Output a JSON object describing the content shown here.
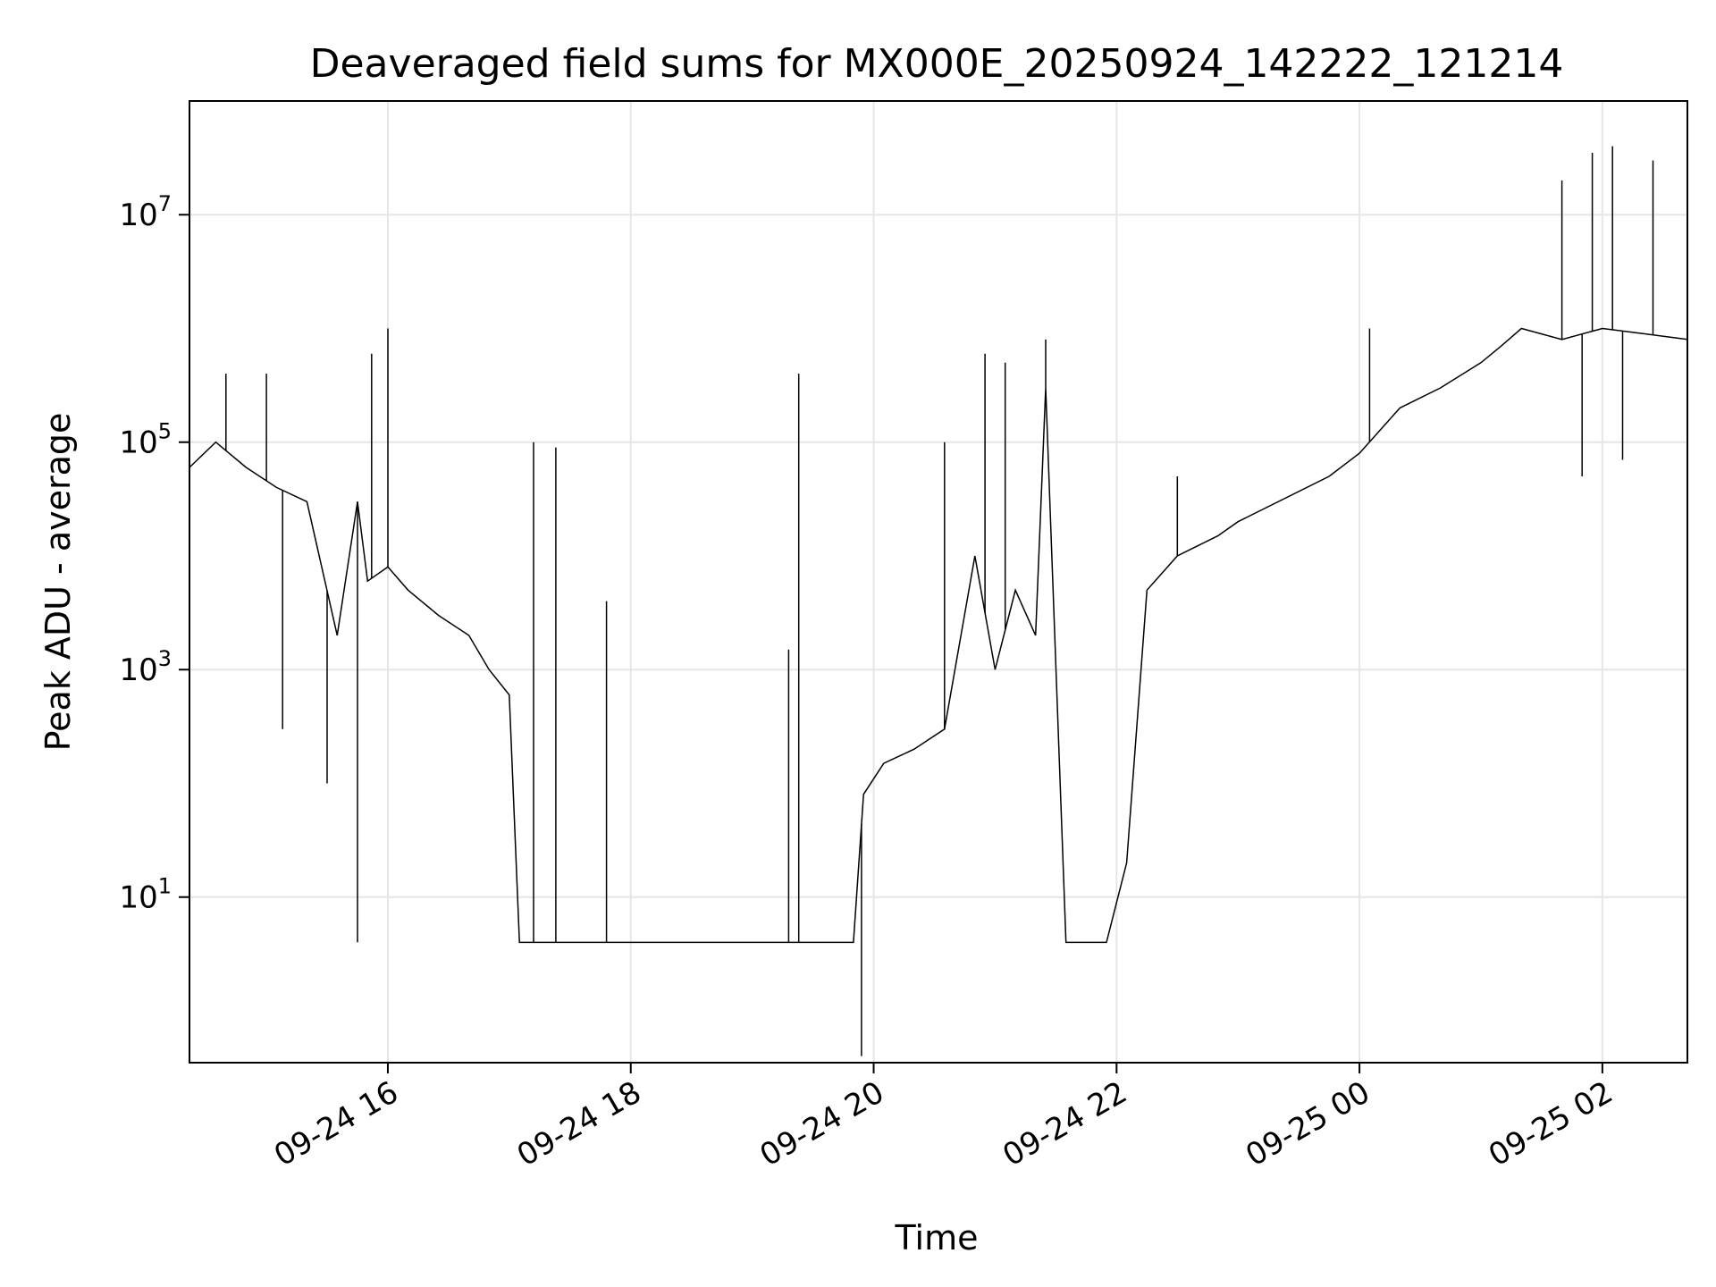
{
  "chart_data": {
    "type": "line",
    "title": "Deaveraged field sums for MX000E_20250924_142222_121214",
    "xlabel": "Time",
    "ylabel": "Peak ADU - average",
    "yscale": "log",
    "ylim": [
      0.35,
      100000000
    ],
    "xlim": [
      "2025-09-24T14:22",
      "2025-09-25T02:42"
    ],
    "grid": true,
    "line_color": "#000000",
    "x_ticks": [
      {
        "value": "2025-09-24T16:00",
        "label": "09-24 16"
      },
      {
        "value": "2025-09-24T18:00",
        "label": "09-24 18"
      },
      {
        "value": "2025-09-24T20:00",
        "label": "09-24 20"
      },
      {
        "value": "2025-09-24T22:00",
        "label": "09-24 22"
      },
      {
        "value": "2025-09-25T00:00",
        "label": "09-25 00"
      },
      {
        "value": "2025-09-25T02:00",
        "label": "09-25 02"
      }
    ],
    "y_ticks": [
      {
        "value": 10,
        "base": "10",
        "exp": "1"
      },
      {
        "value": 1000,
        "base": "10",
        "exp": "3"
      },
      {
        "value": 100000,
        "base": "10",
        "exp": "5"
      },
      {
        "value": 10000000,
        "base": "10",
        "exp": "7"
      }
    ],
    "series": [
      {
        "x": [
          "2025-09-24T14:22",
          "2025-09-24T14:35",
          "2025-09-24T14:50",
          "2025-09-24T15:05",
          "2025-09-24T15:20",
          "2025-09-24T15:35",
          "2025-09-24T15:45",
          "2025-09-24T15:50",
          "2025-09-24T16:00",
          "2025-09-24T16:10",
          "2025-09-24T16:25",
          "2025-09-24T16:40",
          "2025-09-24T16:50",
          "2025-09-24T17:00",
          "2025-09-24T17:05",
          "2025-09-24T17:20",
          "2025-09-24T17:40",
          "2025-09-24T18:30",
          "2025-09-24T19:10",
          "2025-09-24T19:30",
          "2025-09-24T19:50",
          "2025-09-24T19:55",
          "2025-09-24T20:05",
          "2025-09-24T20:20",
          "2025-09-24T20:35",
          "2025-09-24T20:50",
          "2025-09-24T21:00",
          "2025-09-24T21:10",
          "2025-09-24T21:20",
          "2025-09-24T21:25",
          "2025-09-24T21:35",
          "2025-09-24T21:45",
          "2025-09-24T21:55",
          "2025-09-24T22:05",
          "2025-09-24T22:15",
          "2025-09-24T22:30",
          "2025-09-24T22:50",
          "2025-09-24T23:00",
          "2025-09-24T23:45",
          "2025-09-25T00:00",
          "2025-09-25T00:20",
          "2025-09-25T00:40",
          "2025-09-25T01:00",
          "2025-09-25T01:10",
          "2025-09-25T01:20",
          "2025-09-25T01:40",
          "2025-09-25T02:00",
          "2025-09-25T02:20",
          "2025-09-25T02:42"
        ],
        "y": [
          60000,
          100000,
          60000,
          40000,
          30000,
          2000,
          30000,
          6000,
          8000,
          5000,
          3000,
          2000,
          1000,
          600,
          4,
          4,
          4,
          4,
          4,
          4,
          4,
          80,
          150,
          200,
          300,
          10000,
          1000,
          5000,
          2000,
          300000,
          4,
          4,
          4,
          20,
          5000,
          10000,
          15000,
          20000,
          50000,
          80000,
          200000,
          300000,
          500000,
          700000,
          1000000,
          800000,
          1000000,
          900000,
          800000
        ],
        "spikes": [
          {
            "x": "2025-09-24T14:40",
            "y": 400000
          },
          {
            "x": "2025-09-24T15:00",
            "y": 400000
          },
          {
            "x": "2025-09-24T15:08",
            "y": 300
          },
          {
            "x": "2025-09-24T15:30",
            "y": 100
          },
          {
            "x": "2025-09-24T15:45",
            "y": 4
          },
          {
            "x": "2025-09-24T15:52",
            "y": 600000
          },
          {
            "x": "2025-09-24T16:00",
            "y": 1000000
          },
          {
            "x": "2025-09-24T17:12",
            "y": 100000
          },
          {
            "x": "2025-09-24T17:23",
            "y": 90000
          },
          {
            "x": "2025-09-24T17:48",
            "y": 4000
          },
          {
            "x": "2025-09-24T19:18",
            "y": 1500
          },
          {
            "x": "2025-09-24T19:23",
            "y": 400000
          },
          {
            "x": "2025-09-24T19:54",
            "y": 0.4
          },
          {
            "x": "2025-09-24T20:35",
            "y": 100000
          },
          {
            "x": "2025-09-24T20:55",
            "y": 600000
          },
          {
            "x": "2025-09-24T21:05",
            "y": 500000
          },
          {
            "x": "2025-09-24T21:25",
            "y": 800000
          },
          {
            "x": "2025-09-24T22:30",
            "y": 50000
          },
          {
            "x": "2025-09-25T00:05",
            "y": 1000000
          },
          {
            "x": "2025-09-25T01:40",
            "y": 20000000
          },
          {
            "x": "2025-09-25T01:55",
            "y": 35000000
          },
          {
            "x": "2025-09-25T02:05",
            "y": 40000000
          },
          {
            "x": "2025-09-25T02:25",
            "y": 30000000
          },
          {
            "x": "2025-09-25T01:50",
            "y": 50000
          },
          {
            "x": "2025-09-25T02:10",
            "y": 70000
          }
        ]
      }
    ]
  }
}
